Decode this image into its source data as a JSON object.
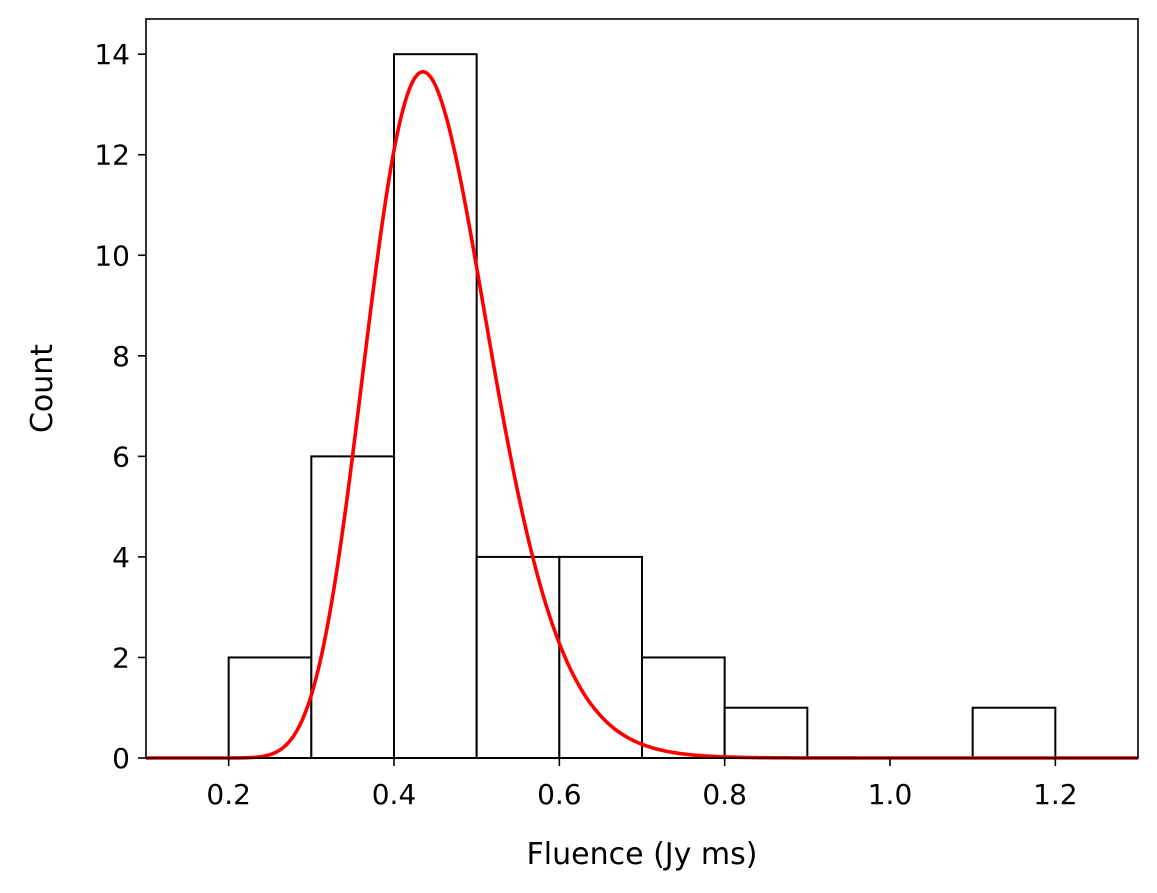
{
  "chart_data": {
    "type": "bar",
    "subtype": "histogram-with-fit",
    "title": "",
    "xlabel": "Fluence (Jy ms)",
    "ylabel": "Count",
    "xlim": [
      0.1,
      1.3
    ],
    "ylim": [
      0,
      14.7
    ],
    "x_ticks": [
      {
        "value": 0.2,
        "label": "0.2"
      },
      {
        "value": 0.4,
        "label": "0.4"
      },
      {
        "value": 0.6,
        "label": "0.6"
      },
      {
        "value": 0.8,
        "label": "0.8"
      },
      {
        "value": 1.0,
        "label": "1.0"
      },
      {
        "value": 1.2,
        "label": "1.2"
      }
    ],
    "y_ticks": [
      {
        "value": 0,
        "label": "0"
      },
      {
        "value": 2,
        "label": "2"
      },
      {
        "value": 4,
        "label": "4"
      },
      {
        "value": 6,
        "label": "6"
      },
      {
        "value": 8,
        "label": "8"
      },
      {
        "value": 10,
        "label": "10"
      },
      {
        "value": 12,
        "label": "12"
      },
      {
        "value": 14,
        "label": "14"
      }
    ],
    "bins": [
      {
        "left": 0.2,
        "right": 0.3,
        "count": 2
      },
      {
        "left": 0.3,
        "right": 0.4,
        "count": 6
      },
      {
        "left": 0.4,
        "right": 0.5,
        "count": 14
      },
      {
        "left": 0.5,
        "right": 0.6,
        "count": 4
      },
      {
        "left": 0.6,
        "right": 0.7,
        "count": 4
      },
      {
        "left": 0.7,
        "right": 0.8,
        "count": 2
      },
      {
        "left": 0.8,
        "right": 0.9,
        "count": 1
      },
      {
        "left": 0.9,
        "right": 1.0,
        "count": 0
      },
      {
        "left": 1.0,
        "right": 1.1,
        "count": 0
      },
      {
        "left": 1.1,
        "right": 1.2,
        "count": 1
      },
      {
        "left": 1.2,
        "right": 1.3,
        "count": 0
      }
    ],
    "fit_curve": {
      "shape": "log-normal",
      "peak_x": 0.435,
      "peak_y": 13.65,
      "log_sigma": 0.17,
      "color": "#ff0000"
    },
    "bar_fill": "#ffffff",
    "bar_edge": "#000000",
    "grid": false,
    "legend": "none"
  }
}
